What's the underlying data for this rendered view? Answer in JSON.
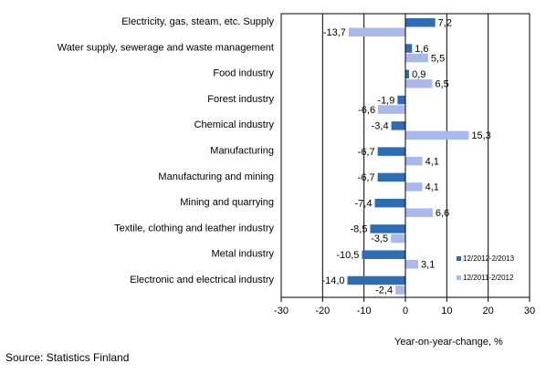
{
  "chart_data": {
    "type": "bar",
    "orientation": "horizontal",
    "categories": [
      "Electricity, gas, steam, etc. Supply",
      "Water supply, sewerage and waste management",
      "Food industry",
      "Forest industry",
      "Chemical industry",
      "Manufacturing",
      "Manufacturing and mining",
      "Mining and quarrying",
      "Textile, clothing and leather industry",
      "Metal industry",
      "Electronic and electrical industry"
    ],
    "series": [
      {
        "name": "12/2012-2/2013",
        "color": "#2e6db4",
        "values": [
          7.2,
          1.6,
          0.9,
          -1.9,
          -3.4,
          -6.7,
          -6.7,
          -7.4,
          -8.5,
          -10.5,
          -14.0
        ],
        "labels": [
          "7,2",
          "1,6",
          "0,9",
          "-1,9",
          "-3,4",
          "-6,7",
          "-6,7",
          "-7,4",
          "-8,5",
          "-10,5",
          "-14,0"
        ]
      },
      {
        "name": "12/2011-2/2012",
        "color": "#a9b9ee",
        "values": [
          -13.7,
          5.5,
          6.5,
          -6.6,
          15.3,
          4.1,
          4.1,
          6.6,
          -3.5,
          3.1,
          -2.4
        ],
        "labels": [
          "-13,7",
          "5,5",
          "6,5",
          "-6,6",
          "15,3",
          "4,1",
          "4,1",
          "6,6",
          "-3,5",
          "3,1",
          "-2,4"
        ]
      }
    ],
    "xlim": [
      -30,
      30
    ],
    "x_ticks": [
      -30,
      -20,
      -10,
      0,
      10,
      20,
      30
    ],
    "x_tick_labels": [
      "-30",
      "-20",
      "-10",
      "0",
      "10",
      "20",
      "30"
    ],
    "xlabel": "Year-on-year-change, %",
    "grid": "vertical",
    "legend_position": "right"
  },
  "source": "Source: Statistics Finland"
}
